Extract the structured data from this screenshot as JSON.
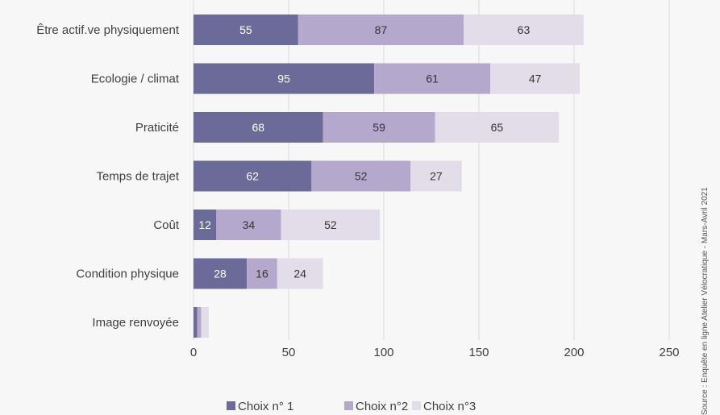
{
  "chart_data": {
    "type": "bar",
    "orientation": "horizontal",
    "stacked": true,
    "categories": [
      "Être actif.ve physiquement",
      "Ecologie / climat",
      "Praticité",
      "Temps de trajet",
      "Coût",
      "Condition physique",
      "Image renvoyée"
    ],
    "series": [
      {
        "name": "Choix n° 1",
        "color": "#6c6a99",
        "label_color": "#ffffff",
        "values": [
          55,
          95,
          68,
          62,
          12,
          28,
          2
        ]
      },
      {
        "name": "Choix n°2",
        "color": "#b4a9cc",
        "label_color": "#333333",
        "values": [
          87,
          61,
          59,
          52,
          34,
          16,
          2
        ]
      },
      {
        "name": "Choix n°3",
        "color": "#e2dde9",
        "label_color": "#333333",
        "values": [
          63,
          47,
          65,
          27,
          52,
          24,
          4
        ]
      }
    ],
    "data_labels": [
      [
        "55",
        "87",
        "63"
      ],
      [
        "95",
        "61",
        "47"
      ],
      [
        "68",
        "59",
        "65"
      ],
      [
        "62",
        "52",
        "27"
      ],
      [
        "12",
        "34",
        "52"
      ],
      [
        "28",
        "16",
        "24"
      ],
      [
        "",
        "",
        ""
      ]
    ],
    "xlim": [
      0,
      250
    ],
    "xticks": [
      0,
      50,
      100,
      150,
      200,
      250
    ],
    "grid": true,
    "legend": "bottom-center",
    "source": "Source : Enquête en ligne Atelier Vélocratique - Mars-Avril 2021"
  }
}
